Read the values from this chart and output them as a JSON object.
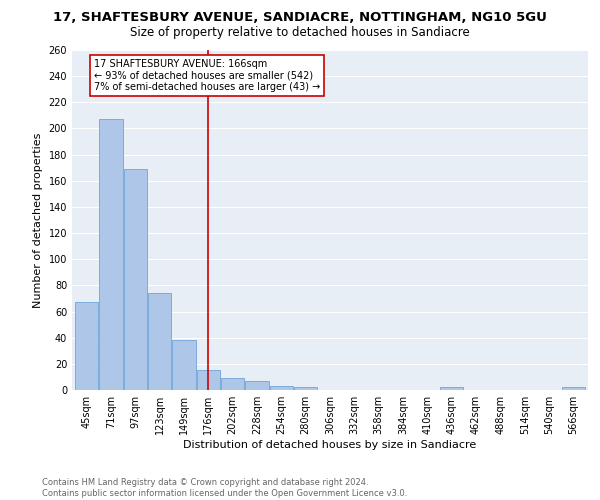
{
  "title_line1": "17, SHAFTESBURY AVENUE, SANDIACRE, NOTTINGHAM, NG10 5GU",
  "title_line2": "Size of property relative to detached houses in Sandiacre",
  "xlabel": "Distribution of detached houses by size in Sandiacre",
  "ylabel": "Number of detached properties",
  "categories": [
    "45sqm",
    "71sqm",
    "97sqm",
    "123sqm",
    "149sqm",
    "176sqm",
    "202sqm",
    "228sqm",
    "254sqm",
    "280sqm",
    "306sqm",
    "332sqm",
    "358sqm",
    "384sqm",
    "410sqm",
    "436sqm",
    "462sqm",
    "488sqm",
    "514sqm",
    "540sqm",
    "566sqm"
  ],
  "values": [
    67,
    207,
    169,
    74,
    38,
    15,
    9,
    7,
    3,
    2,
    0,
    0,
    0,
    0,
    0,
    2,
    0,
    0,
    0,
    0,
    2
  ],
  "bar_color": "#aec6e8",
  "bar_edge_color": "#5b9bd5",
  "vline_x": 5,
  "vline_color": "#cc0000",
  "annotation_text": "17 SHAFTESBURY AVENUE: 166sqm\n← 93% of detached houses are smaller (542)\n7% of semi-detached houses are larger (43) →",
  "annotation_box_color": "#ffffff",
  "annotation_box_edge": "#cc0000",
  "ylim": [
    0,
    260
  ],
  "yticks": [
    0,
    20,
    40,
    60,
    80,
    100,
    120,
    140,
    160,
    180,
    200,
    220,
    240,
    260
  ],
  "background_color": "#e8eef5",
  "footer_line1": "Contains HM Land Registry data © Crown copyright and database right 2024.",
  "footer_line2": "Contains public sector information licensed under the Open Government Licence v3.0.",
  "title_fontsize": 9.5,
  "subtitle_fontsize": 8.5,
  "xlabel_fontsize": 8,
  "ylabel_fontsize": 8,
  "tick_fontsize": 7,
  "footer_fontsize": 6,
  "ann_fontsize": 7
}
